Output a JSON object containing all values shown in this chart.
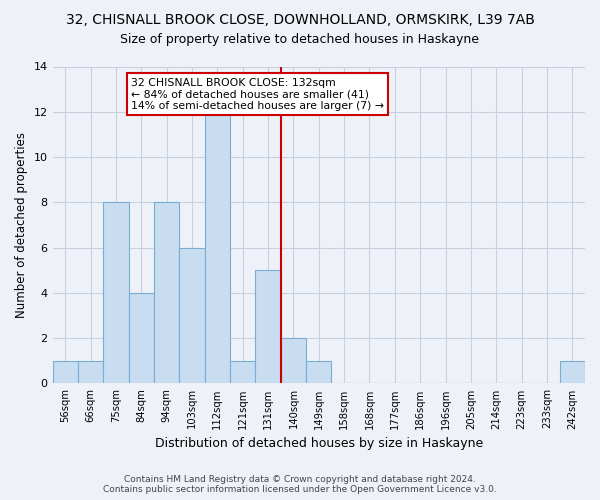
{
  "title": "32, CHISNALL BROOK CLOSE, DOWNHOLLAND, ORMSKIRK, L39 7AB",
  "subtitle": "Size of property relative to detached houses in Haskayne",
  "xlabel": "Distribution of detached houses by size in Haskayne",
  "ylabel": "Number of detached properties",
  "bin_labels": [
    "56sqm",
    "66sqm",
    "75sqm",
    "84sqm",
    "94sqm",
    "103sqm",
    "112sqm",
    "121sqm",
    "131sqm",
    "140sqm",
    "149sqm",
    "158sqm",
    "168sqm",
    "177sqm",
    "186sqm",
    "196sqm",
    "205sqm",
    "214sqm",
    "223sqm",
    "233sqm",
    "242sqm"
  ],
  "bar_heights": [
    1,
    1,
    8,
    4,
    8,
    6,
    12,
    1,
    5,
    2,
    1,
    0,
    0,
    0,
    0,
    0,
    0,
    0,
    0,
    0,
    1
  ],
  "bar_color": "#c8ddf0",
  "bar_edgecolor": "#7aadd4",
  "vline_bin": 8,
  "annotation_text": "32 CHISNALL BROOK CLOSE: 132sqm\n← 84% of detached houses are smaller (41)\n14% of semi-detached houses are larger (7) →",
  "annotation_box_color": "white",
  "annotation_box_edgecolor": "#cc0000",
  "vline_color": "#cc0000",
  "ylim": [
    0,
    14
  ],
  "yticks": [
    0,
    2,
    4,
    6,
    8,
    10,
    12,
    14
  ],
  "footer": "Contains HM Land Registry data © Crown copyright and database right 2024.\nContains public sector information licensed under the Open Government Licence v3.0.",
  "bg_color": "#eef2f8",
  "plot_bg_color": "#eef2f8",
  "grid_color": "#c8d0e0"
}
